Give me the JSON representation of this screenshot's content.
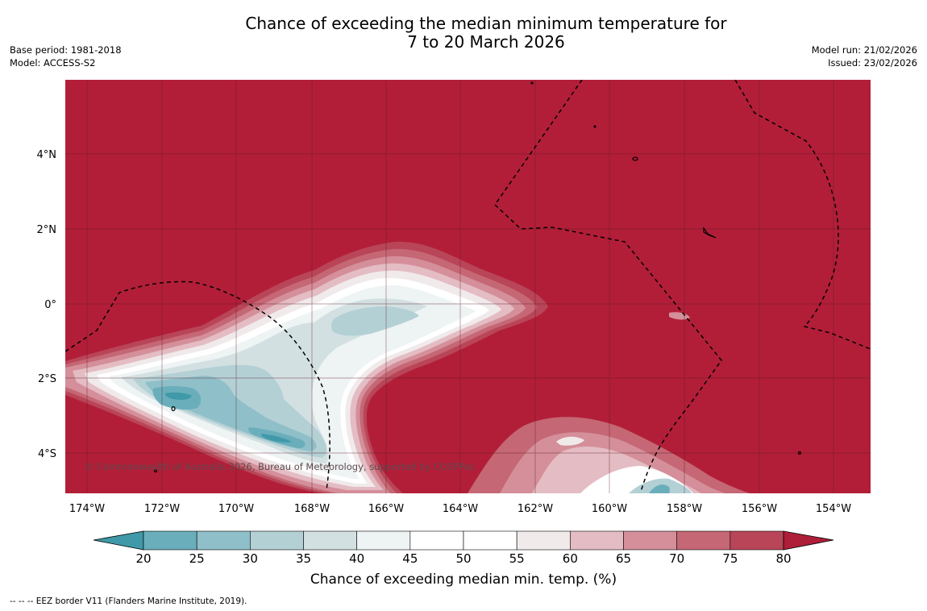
{
  "title_line1": "Chance of exceeding the median minimum temperature for",
  "title_line2": "7 to 20 March 2026",
  "base_period": "Base period: 1981-2018",
  "model": "Model: ACCESS-S2",
  "model_run": "Model run: 21/02/2026",
  "issued": "Issued: 23/02/2026",
  "copyright": "© Commonwealth of Australia 2026, Bureau of Meteorology, supported by COSPPac",
  "lat_labels": [
    "4°N",
    "2°N",
    "0°",
    "2°S",
    "4°S"
  ],
  "lon_labels": [
    "174°W",
    "172°W",
    "170°W",
    "168°W",
    "166°W",
    "164°W",
    "162°W",
    "160°W",
    "158°W",
    "156°W",
    "154°W"
  ],
  "colorbar": {
    "ticks": [
      "20",
      "25",
      "30",
      "35",
      "40",
      "45",
      "50",
      "55",
      "60",
      "65",
      "70",
      "75",
      "80"
    ],
    "colors": [
      "#3f99a8",
      "#6aaebb",
      "#8fbfc8",
      "#b3d0d5",
      "#d3e0e2",
      "#eef3f4",
      "#ffffff",
      "#ffffff",
      "#f0eaeb",
      "#e4bcc3",
      "#d48f9a",
      "#c56774",
      "#b94558",
      "#ae1e38"
    ],
    "label": "Chance of exceeding median min. temp. (%)"
  },
  "legend_note": "--  --  -- EEZ border V11 (Flanders Marine Institute, 2019).",
  "colors": {
    "background_red": "#b21e38",
    "ocean_grid": "#5a1a24"
  }
}
